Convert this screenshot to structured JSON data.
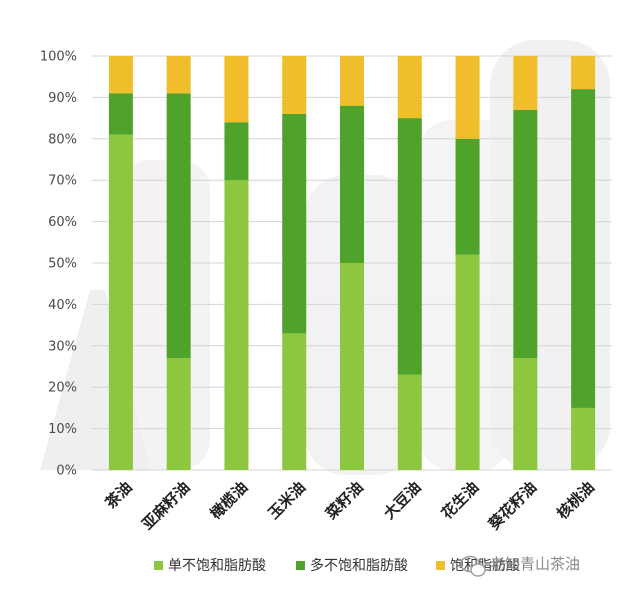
{
  "chart_data": {
    "type": "bar",
    "stacked": true,
    "percent": true,
    "categories": [
      "茶油",
      "亚麻籽油",
      "橄榄油",
      "玉米油",
      "菜籽油",
      "大豆油",
      "花生油",
      "葵花籽油",
      "核桃油"
    ],
    "series": [
      {
        "name": "单不饱和脂肪酸",
        "color": "#8dc63f",
        "values": [
          81,
          27,
          70,
          33,
          50,
          23,
          52,
          27,
          15
        ]
      },
      {
        "name": "多不饱和脂肪酸",
        "color": "#4fa22a",
        "values": [
          10,
          64,
          14,
          53,
          38,
          62,
          28,
          60,
          77
        ]
      },
      {
        "name": "饱和脂肪酸",
        "color": "#f0bd2b",
        "values": [
          9,
          9,
          16,
          14,
          12,
          15,
          20,
          13,
          8
        ]
      }
    ],
    "ylim": [
      0,
      100
    ],
    "yticks": [
      "0%",
      "10%",
      "20%",
      "30%",
      "40%",
      "50%",
      "60%",
      "70%",
      "80%",
      "90%",
      "100%"
    ],
    "grid": true,
    "legend_position": "bottom"
  },
  "watermark": {
    "text": "老知青山茶油",
    "icon": "wechat-icon"
  }
}
